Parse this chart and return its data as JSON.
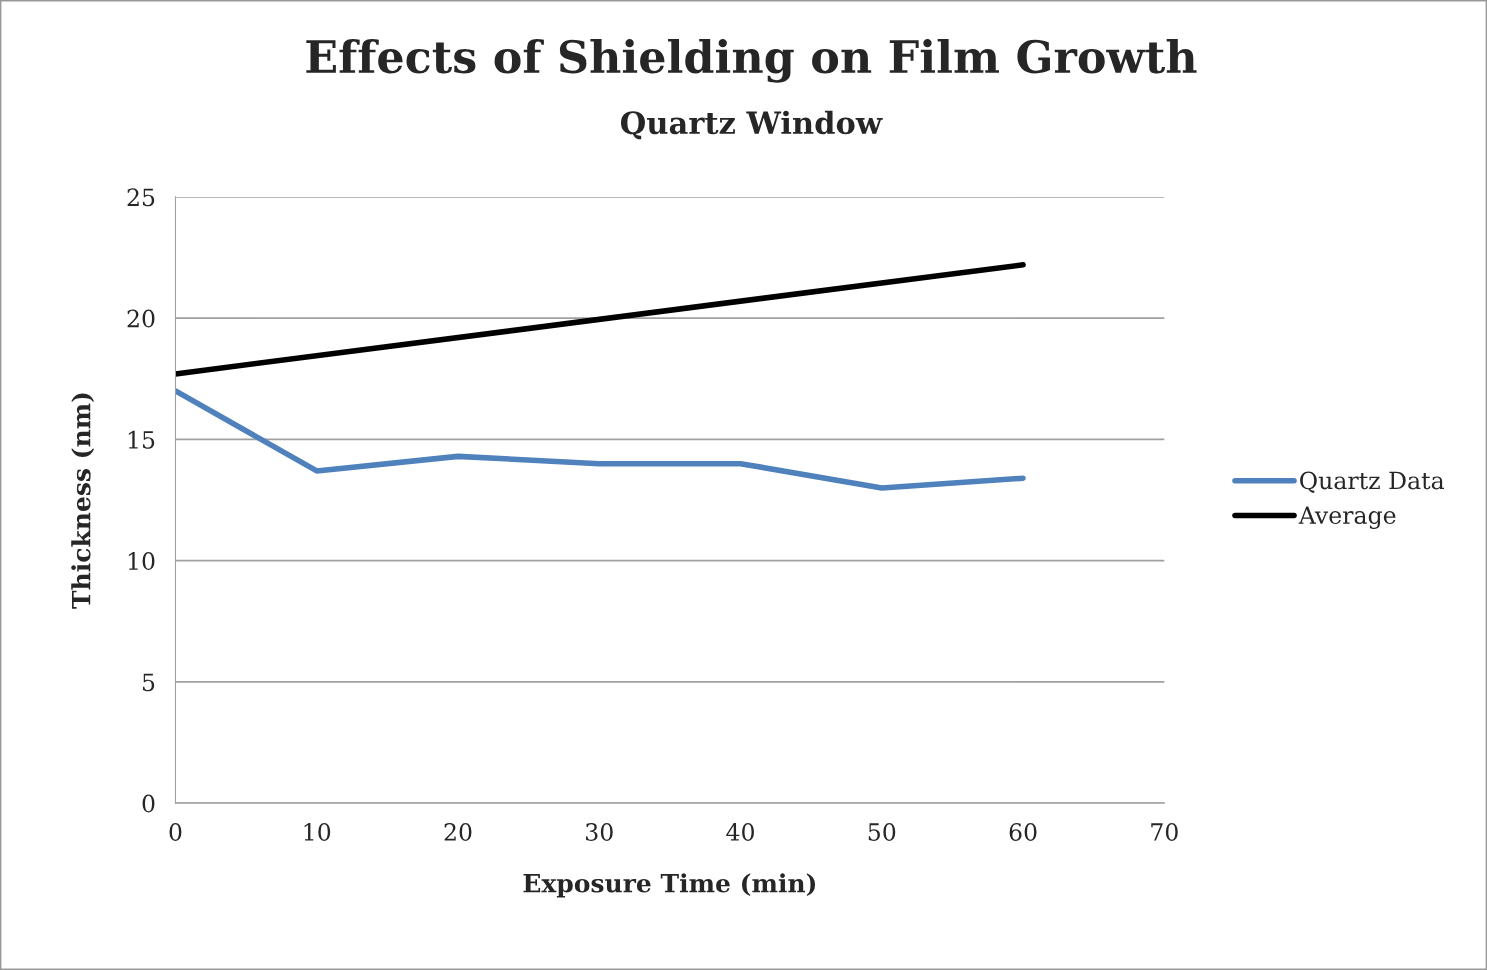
{
  "chart_data": {
    "type": "line",
    "title": "Effects of Shielding on Film Growth",
    "subtitle": "Quartz Window",
    "xlabel": "Exposure Time (min)",
    "ylabel": "Thickness (nm)",
    "x": [
      0,
      10,
      20,
      30,
      40,
      50,
      60
    ],
    "series": [
      {
        "name": "Quartz Data",
        "color": "#4f81bd",
        "values": [
          17.0,
          13.7,
          14.3,
          14.0,
          14.0,
          13.0,
          13.4
        ]
      },
      {
        "name": "Average",
        "color": "#000000",
        "x": [
          0,
          60
        ],
        "values": [
          17.7,
          22.2
        ]
      }
    ],
    "xlim": [
      0,
      70
    ],
    "xticks": [
      0,
      10,
      20,
      30,
      40,
      50,
      60,
      70
    ],
    "ylim": [
      0,
      25
    ],
    "yticks": [
      0,
      5,
      10,
      15,
      20,
      25
    ],
    "grid": "y",
    "legend": "right",
    "marker": "none",
    "line_style": "solid"
  }
}
